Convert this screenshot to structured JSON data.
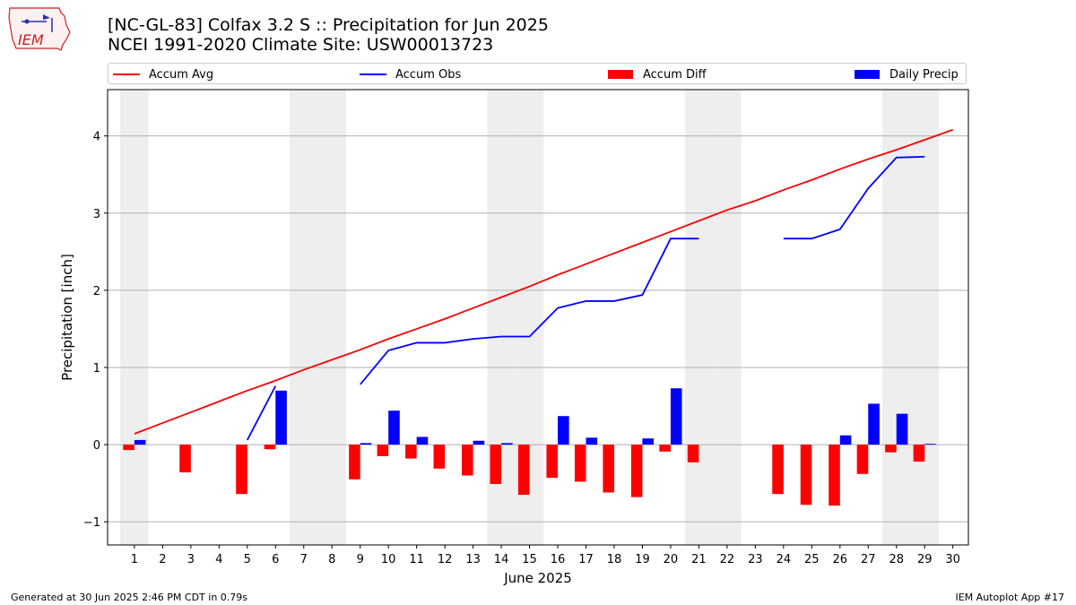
{
  "title_line1": "[NC-GL-83] Colfax 3.2 S :: Precipitation for Jun 2025",
  "title_line2": "NCEI 1991-2020 Climate Site: USW00013723",
  "logo_text": "IEM",
  "footer": {
    "generated": "Generated at 30 Jun 2025 2:46 PM CDT in 0.79s",
    "app": "IEM Autoplot App #17"
  },
  "colors": {
    "avg": "#ff0000",
    "obs": "#0000ff",
    "diff": "#ff0000",
    "daily": "#0000ff",
    "weekend_shade": "#eeeeee",
    "grid": "#b0b0b0"
  },
  "chart_data": {
    "type": "bar",
    "xlabel": "June 2025",
    "ylabel": "Precipitation [inch]",
    "ylim": [
      -1.3,
      4.6
    ],
    "y_ticks": [
      -1,
      0,
      1,
      2,
      3,
      4
    ],
    "y_tick_labels": [
      "−1",
      "0",
      "1",
      "2",
      "3",
      "4"
    ],
    "grid": "horizontal",
    "legend_position": "top",
    "x": [
      1,
      2,
      3,
      4,
      5,
      6,
      7,
      8,
      9,
      10,
      11,
      12,
      13,
      14,
      15,
      16,
      17,
      18,
      19,
      20,
      21,
      22,
      23,
      24,
      25,
      26,
      27,
      28,
      29,
      30
    ],
    "weekends": [
      1,
      7,
      8,
      14,
      15,
      21,
      22,
      28,
      29
    ],
    "series": [
      {
        "name": "Accum Avg",
        "kind": "line",
        "values": [
          0.14,
          0.28,
          0.42,
          0.56,
          0.7,
          0.83,
          0.97,
          1.1,
          1.23,
          1.37,
          1.5,
          1.63,
          1.77,
          1.91,
          2.05,
          2.2,
          2.34,
          2.48,
          2.62,
          2.76,
          2.9,
          3.04,
          3.16,
          3.3,
          3.43,
          3.57,
          3.7,
          3.82,
          3.95,
          4.08
        ]
      },
      {
        "name": "Accum Obs",
        "kind": "line",
        "values": [
          null,
          null,
          null,
          null,
          0.06,
          0.76,
          null,
          null,
          0.78,
          1.22,
          1.32,
          1.32,
          1.37,
          1.4,
          1.4,
          1.77,
          1.86,
          1.86,
          1.94,
          2.67,
          2.67,
          null,
          null,
          2.67,
          2.67,
          2.79,
          3.32,
          3.72,
          3.73,
          null
        ]
      },
      {
        "name": "Accum Diff",
        "kind": "bar",
        "values": [
          -0.07,
          null,
          -0.36,
          null,
          -0.64,
          -0.06,
          null,
          null,
          -0.45,
          -0.15,
          -0.18,
          -0.31,
          -0.4,
          -0.51,
          -0.65,
          -0.43,
          -0.48,
          -0.62,
          -0.68,
          -0.09,
          -0.23,
          null,
          null,
          -0.64,
          -0.78,
          -0.79,
          -0.38,
          -0.1,
          -0.22,
          null
        ]
      },
      {
        "name": "Daily Precip",
        "kind": "bar",
        "values": [
          0.06,
          null,
          null,
          null,
          null,
          0.7,
          null,
          null,
          0.02,
          0.44,
          0.1,
          null,
          0.05,
          0.02,
          null,
          0.37,
          0.09,
          null,
          0.08,
          0.73,
          null,
          null,
          null,
          null,
          null,
          0.12,
          0.53,
          0.4,
          0.01,
          null
        ]
      }
    ]
  }
}
